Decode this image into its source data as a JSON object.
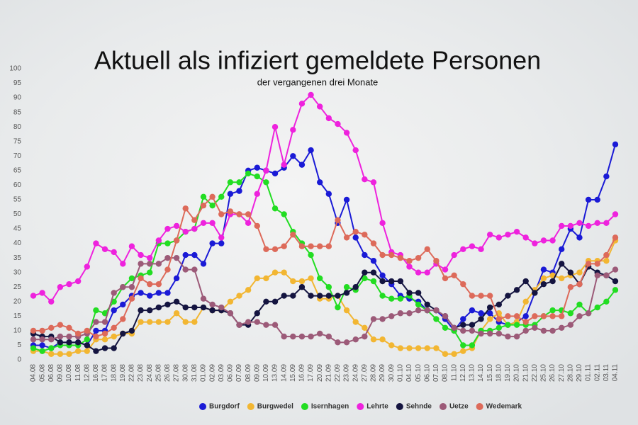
{
  "chart_data": {
    "type": "line",
    "title": "Aktuell als infiziert gemeldete Personen",
    "subtitle": "der vergangenen drei Monate",
    "categories": [
      "04.08",
      "05.08",
      "06.08",
      "09.08",
      "10.08",
      "11.08",
      "12.08",
      "16.08",
      "17.08",
      "18.08",
      "19.08",
      "22.08",
      "23.08",
      "24.08",
      "25.08",
      "26.08",
      "27.08",
      "30.08",
      "31.08",
      "01.09",
      "02.09",
      "03.09",
      "06.09",
      "07.09",
      "08.09",
      "09.09",
      "10.09",
      "13.09",
      "14.09",
      "15.09",
      "16.09",
      "17.09",
      "20.09",
      "21.09",
      "22.09",
      "23.09",
      "24.09",
      "27.09",
      "28.09",
      "29.09",
      "30.09",
      "01.10",
      "04.10",
      "05.10",
      "06.10",
      "07.10",
      "08.10",
      "11.10",
      "12.10",
      "13.10",
      "14.10",
      "15.10",
      "18.10",
      "19.10",
      "20.10",
      "21.10",
      "22.10",
      "25.10",
      "26.10",
      "27.10",
      "28.10",
      "29.10",
      "01.11",
      "02.11",
      "03.11",
      "04.11"
    ],
    "series": [
      {
        "name": "Burgdorf",
        "color": "#1a1ad6",
        "values": [
          5,
          5,
          4,
          6,
          6,
          6,
          5,
          10,
          10,
          17,
          19,
          22,
          23,
          22,
          23,
          23,
          28,
          36,
          36,
          33,
          40,
          40,
          57,
          58,
          65,
          66,
          65,
          64,
          66,
          70,
          67,
          72,
          61,
          57,
          47,
          55,
          42,
          36,
          34,
          29,
          26,
          22,
          21,
          20,
          17,
          17,
          14,
          10,
          14,
          17,
          16,
          16,
          13,
          12,
          13,
          15,
          23,
          31,
          30,
          38,
          45,
          42,
          55,
          55,
          63,
          74
        ]
      },
      {
        "name": "Burgwedel",
        "color": "#f2b632",
        "values": [
          3,
          3,
          2,
          2,
          2,
          3,
          3,
          7,
          7,
          8,
          9,
          9,
          13,
          13,
          13,
          13,
          16,
          13,
          13,
          18,
          17,
          17,
          20,
          22,
          24,
          28,
          28,
          30,
          30,
          27,
          27,
          28,
          21,
          21,
          22,
          17,
          13,
          11,
          7,
          7,
          5,
          4,
          4,
          4,
          4,
          4,
          2,
          2,
          3,
          4,
          10,
          14,
          16,
          12,
          13,
          20,
          24,
          28,
          29,
          28,
          29,
          30,
          34,
          34,
          34,
          41
        ]
      },
      {
        "name": "Isernhagen",
        "color": "#22dd22",
        "values": [
          4,
          3,
          4,
          5,
          5,
          5,
          7,
          17,
          16,
          20,
          25,
          28,
          29,
          30,
          40,
          40,
          41,
          44,
          45,
          56,
          53,
          56,
          61,
          61,
          64,
          63,
          61,
          52,
          50,
          44,
          40,
          36,
          28,
          25,
          18,
          25,
          24,
          28,
          27,
          22,
          21,
          21,
          22,
          19,
          17,
          14,
          11,
          10,
          5,
          5,
          10,
          10,
          11,
          12,
          12,
          12,
          12,
          15,
          17,
          17,
          16,
          19,
          16,
          18,
          20,
          24
        ]
      },
      {
        "name": "Lehrte",
        "color": "#ee22dd",
        "values": [
          22,
          23,
          20,
          25,
          26,
          27,
          32,
          40,
          38,
          37,
          33,
          39,
          36,
          35,
          41,
          45,
          46,
          44,
          45,
          47,
          47,
          42,
          50,
          50,
          47,
          57,
          65,
          80,
          67,
          79,
          88,
          91,
          87,
          83,
          81,
          78,
          72,
          62,
          61,
          47,
          37,
          36,
          32,
          30,
          30,
          33,
          31,
          36,
          38,
          39,
          38,
          43,
          42,
          43,
          44,
          42,
          40,
          41,
          41,
          46,
          46,
          47,
          46,
          47,
          47,
          50
        ]
      },
      {
        "name": "Sehnde",
        "color": "#141440",
        "values": [
          9,
          8,
          8,
          6,
          6,
          6,
          5,
          3,
          4,
          4,
          9,
          10,
          17,
          17,
          18,
          19,
          20,
          18,
          18,
          18,
          17,
          17,
          16,
          12,
          12,
          16,
          20,
          20,
          22,
          22,
          25,
          22,
          22,
          22,
          22,
          23,
          25,
          30,
          30,
          27,
          27,
          27,
          23,
          23,
          19,
          17,
          15,
          11,
          12,
          12,
          14,
          18,
          19,
          22,
          24,
          27,
          23,
          26,
          27,
          33,
          30,
          26,
          32,
          30,
          29,
          27
        ]
      },
      {
        "name": "Uetze",
        "color": "#9c5a78",
        "values": [
          7,
          7,
          7,
          8,
          8,
          8,
          9,
          13,
          13,
          23,
          25,
          25,
          33,
          33,
          33,
          35,
          35,
          31,
          31,
          21,
          19,
          18,
          16,
          12,
          13,
          13,
          12,
          12,
          8,
          8,
          8,
          8,
          9,
          8,
          6,
          6,
          7,
          8,
          14,
          14,
          15,
          16,
          16,
          17,
          17,
          17,
          15,
          11,
          10,
          10,
          9,
          9,
          9,
          8,
          8,
          10,
          11,
          10,
          10,
          11,
          12,
          15,
          16,
          29,
          29,
          31
        ]
      },
      {
        "name": "Wedemark",
        "color": "#dd6a5a",
        "values": [
          10,
          10,
          11,
          12,
          11,
          9,
          10,
          8,
          9,
          11,
          14,
          21,
          28,
          26,
          26,
          31,
          41,
          52,
          48,
          53,
          56,
          50,
          51,
          50,
          50,
          46,
          38,
          38,
          39,
          43,
          39,
          39,
          39,
          39,
          48,
          42,
          44,
          43,
          40,
          36,
          36,
          35,
          34,
          35,
          38,
          34,
          28,
          29,
          26,
          22,
          22,
          22,
          14,
          15,
          15,
          13,
          15,
          15,
          15,
          15,
          25,
          26,
          33,
          33,
          36,
          42
        ]
      }
    ],
    "ylim": [
      0,
      100
    ],
    "yticks": [
      0,
      5,
      10,
      15,
      20,
      25,
      30,
      35,
      40,
      45,
      50,
      55,
      60,
      65,
      70,
      75,
      80,
      85,
      90,
      95,
      100
    ],
    "grid": false
  }
}
